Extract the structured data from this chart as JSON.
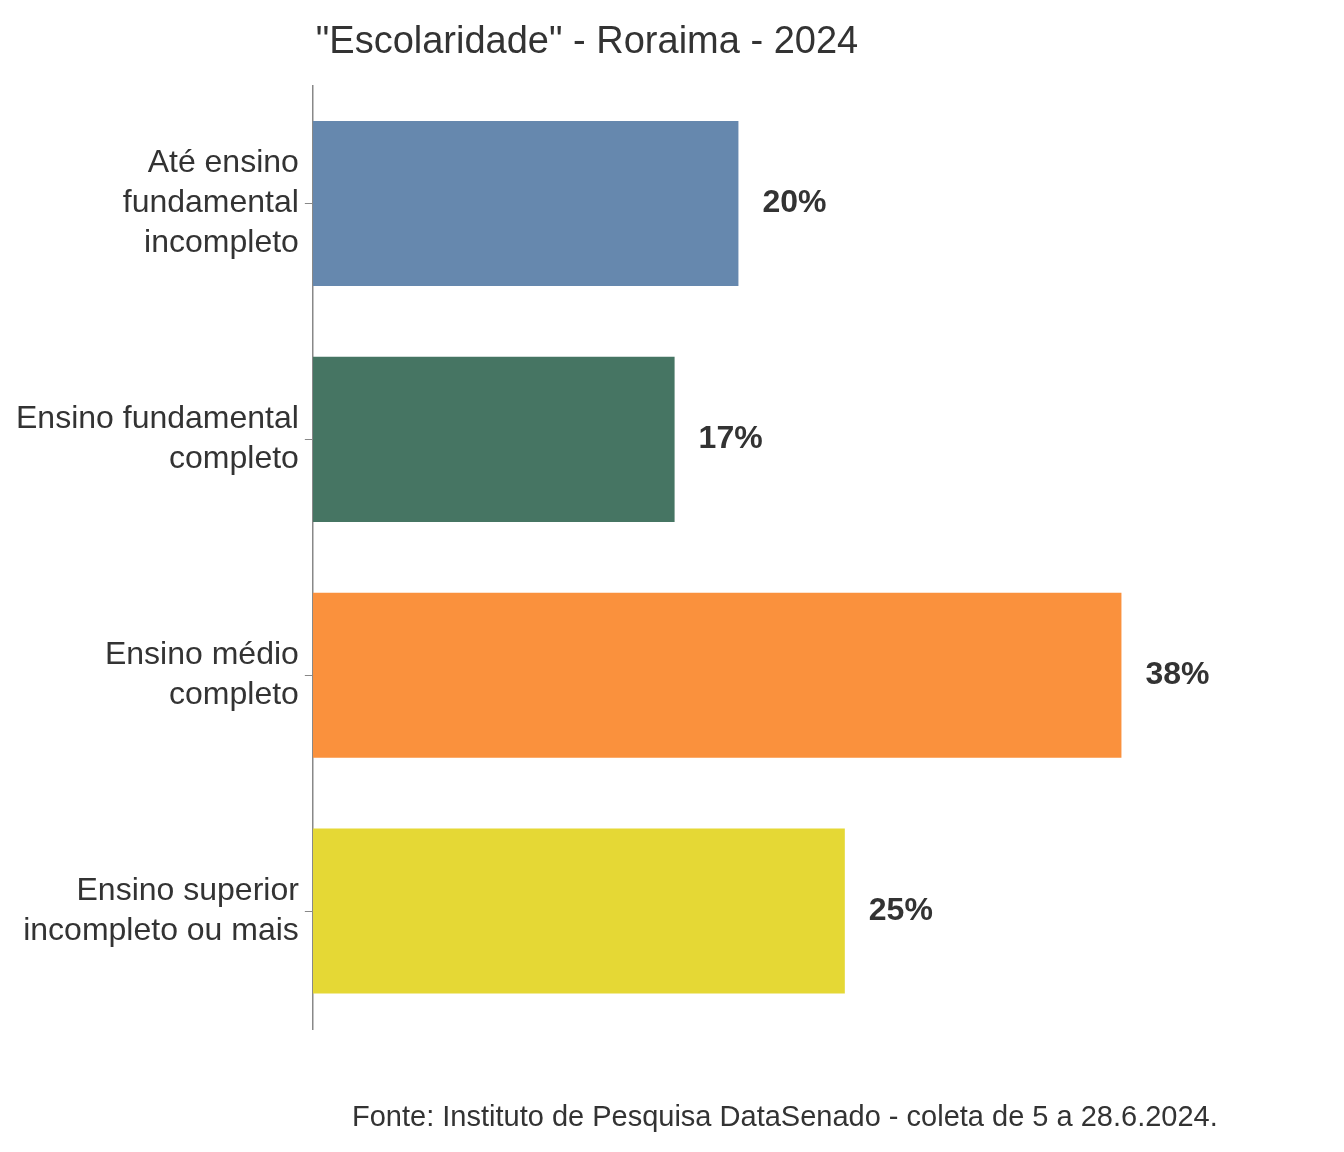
{
  "chart_data": {
    "type": "bar",
    "orientation": "horizontal",
    "title": "\"Escolaridade\" - Roraima - 2024",
    "categories": [
      "Até ensino fundamental incompleto",
      "Ensino fundamental completo",
      "Ensino médio completo",
      "Ensino superior incompleto ou mais"
    ],
    "values": [
      20,
      17,
      38,
      25
    ],
    "value_labels": [
      "20%",
      "17%",
      "38%",
      "25%"
    ],
    "colors": [
      "#6688ae",
      "#467563",
      "#fa913d",
      "#e5d835"
    ],
    "annotations": [
      "Fonte: Instituto de Pesquisa DataSenado - coleta de 5 a 28.6.2024."
    ],
    "grid": false,
    "legend": false
  }
}
